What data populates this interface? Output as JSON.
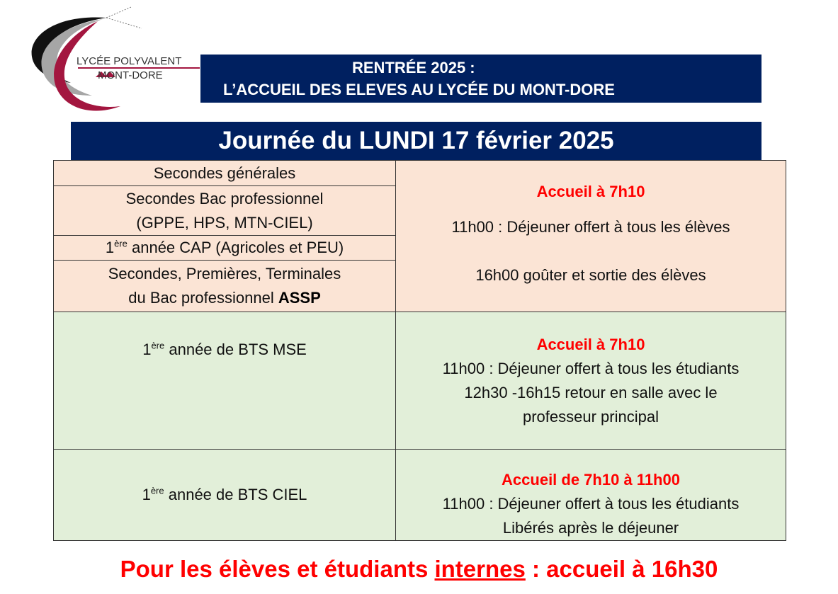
{
  "logo": {
    "line1": "LYCÉE POLYVALENT",
    "line2": "MONT-DORE"
  },
  "banner": {
    "line1": "RENTRÉE 2025 :",
    "line2": "L’ACCUEIL DES ELEVES AU LYCÉE DU MONT-DORE"
  },
  "day_title": "Journée du LUNDI 17 février 2025",
  "colors": {
    "navy": "#002060",
    "peach": "#FBE4D5",
    "green": "#E2EFD9",
    "red": "#FF0000"
  },
  "group1": {
    "classes": [
      "Secondes  générales",
      "Secondes Bac professionnel",
      "(GPPE, HPS, MTN-CIEL)",
      "1",
      "ère",
      "année CAP (Agricoles et PEU)",
      "Secondes, Premières, Terminales",
      "du Bac professionnel ",
      "ASSP"
    ],
    "accueil": "Accueil à 7h10",
    "lines": [
      "11h00 : Déjeuner offert à tous les élèves",
      "16h00 goûter et sortie des élèves"
    ]
  },
  "group2": {
    "class_num": "1",
    "class_sup": "ère",
    "class_rest": "année de BTS MSE",
    "accueil": "Accueil à 7h10",
    "lines": [
      "11h00 : Déjeuner offert à tous les étudiants",
      "12h30 -16h15 retour en salle avec le",
      "professeur principal"
    ]
  },
  "group3": {
    "class_num": "1",
    "class_sup": "ère",
    "class_rest": "année de BTS CIEL",
    "accueil": "Accueil de 7h10 à 11h00",
    "lines": [
      "11h00 : Déjeuner offert à tous les étudiants",
      "Libérés après le déjeuner"
    ]
  },
  "footer": {
    "pre": "Pour les élèves et étudiants ",
    "underlined": "internes",
    "post": " : accueil à 16h30"
  }
}
